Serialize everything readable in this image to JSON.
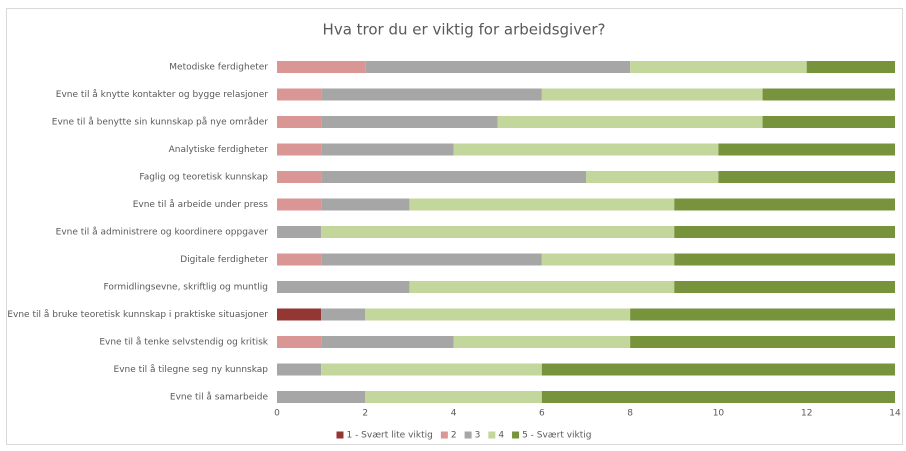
{
  "chart_data": {
    "type": "stacked-bar-horizontal",
    "title": "Hva tror du er viktig for arbeidsgiver?",
    "categories": [
      "Metodiske ferdigheter",
      "Evne til å knytte kontakter og bygge relasjoner",
      "Evne til å benytte sin kunnskap på nye områder",
      "Analytiske ferdigheter",
      "Faglig og teoretisk kunnskap",
      "Evne til å arbeide under press",
      "Evne til å administrere og koordinere oppgaver",
      "Digitale ferdigheter",
      "Formidlingsevne, skriftlig og muntlig",
      "Evne til å bruke teoretisk kunnskap i praktiske situasjoner",
      "Evne til å tenke selvstendig og kritisk",
      "Evne til å tilegne seg ny kunnskap",
      "Evne til å samarbeide"
    ],
    "series": [
      {
        "name": "1 - Svært lite viktig",
        "color": "#943634",
        "values": [
          0,
          0,
          0,
          0,
          0,
          0,
          0,
          0,
          0,
          1,
          0,
          0,
          0
        ]
      },
      {
        "name": "2",
        "color": "#d99694",
        "values": [
          2,
          1,
          1,
          1,
          1,
          1,
          0,
          1,
          0,
          0,
          1,
          0,
          0
        ]
      },
      {
        "name": "3",
        "color": "#a6a6a6",
        "values": [
          6,
          5,
          4,
          3,
          6,
          2,
          1,
          5,
          3,
          1,
          3,
          1,
          2
        ]
      },
      {
        "name": "4",
        "color": "#c3d69b",
        "values": [
          4,
          5,
          6,
          6,
          3,
          6,
          8,
          3,
          6,
          6,
          4,
          5,
          4
        ]
      },
      {
        "name": "5 - Svært viktig",
        "color": "#77933c",
        "values": [
          2,
          3,
          3,
          4,
          4,
          5,
          5,
          5,
          5,
          6,
          6,
          8,
          8
        ]
      }
    ],
    "xlim": [
      0,
      14
    ],
    "xticks": [
      0,
      2,
      4,
      6,
      8,
      10,
      12,
      14
    ],
    "grid": false,
    "legend": "bottom"
  }
}
